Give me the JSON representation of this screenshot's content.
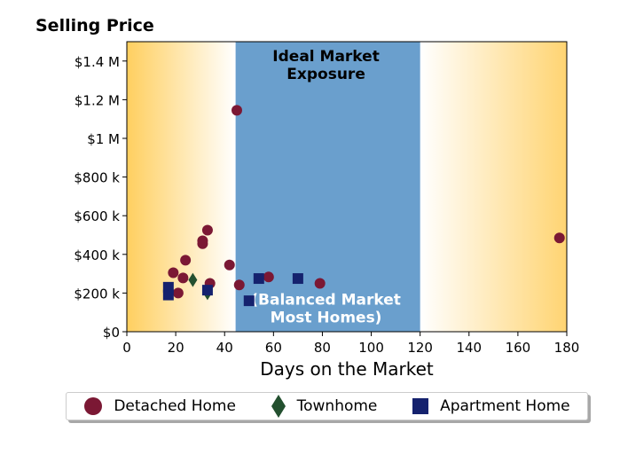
{
  "chart_data": {
    "type": "scatter",
    "title": "Selling Price",
    "xlabel": "Days on the Market",
    "ylabel": "",
    "xlim": [
      0,
      180
    ],
    "ylim": [
      0,
      1500000
    ],
    "xticks": [
      0,
      20,
      40,
      60,
      80,
      100,
      120,
      140,
      160,
      180
    ],
    "xtick_labels": [
      "0",
      "20",
      "40",
      "60",
      "80",
      "100",
      "120",
      "140",
      "160",
      "180"
    ],
    "yticks": [
      0,
      200000,
      400000,
      600000,
      800000,
      1000000,
      1200000,
      1400000
    ],
    "ytick_labels": [
      "$0",
      "$200 k",
      "$400 k",
      "$600 k",
      "$800 k",
      "$1 M",
      "$1.2 M",
      "$1.4 M"
    ],
    "grid": false,
    "legend_position": "bottom",
    "bands": [
      {
        "name": "ideal",
        "x_from": 44.5,
        "x_to": 120,
        "color": "#6a9fcd"
      }
    ],
    "annotations": [
      {
        "text_lines": [
          "Ideal Market",
          "Exposure"
        ],
        "x": 81.5,
        "y": 1400000,
        "color": "#000000"
      },
      {
        "text_lines": [
          "(Balanced Market",
          "Most Homes)"
        ],
        "x": 81.5,
        "y": 140000,
        "color": "#ffffff"
      }
    ],
    "series": [
      {
        "name": "Detached Home",
        "marker": "circle",
        "color": "#7b1834",
        "points": [
          [
            19,
            305000
          ],
          [
            21,
            200000
          ],
          [
            23,
            278000
          ],
          [
            24,
            370000
          ],
          [
            31,
            470000
          ],
          [
            31,
            455000
          ],
          [
            33,
            525000
          ],
          [
            34,
            250000
          ],
          [
            42,
            345000
          ],
          [
            45,
            1145000
          ],
          [
            46,
            242000
          ],
          [
            58,
            283000
          ],
          [
            79,
            250000
          ],
          [
            177,
            485000
          ]
        ]
      },
      {
        "name": "Townhome",
        "marker": "diamond",
        "color": "#23502f",
        "points": [
          [
            27,
            268000
          ],
          [
            33,
            200000
          ]
        ]
      },
      {
        "name": "Apartment Home",
        "marker": "square",
        "color": "#15226e",
        "points": [
          [
            17,
            230000
          ],
          [
            17,
            190000
          ],
          [
            33,
            215000
          ],
          [
            50,
            160000
          ],
          [
            54,
            275000
          ],
          [
            70,
            275000
          ]
        ]
      }
    ]
  }
}
